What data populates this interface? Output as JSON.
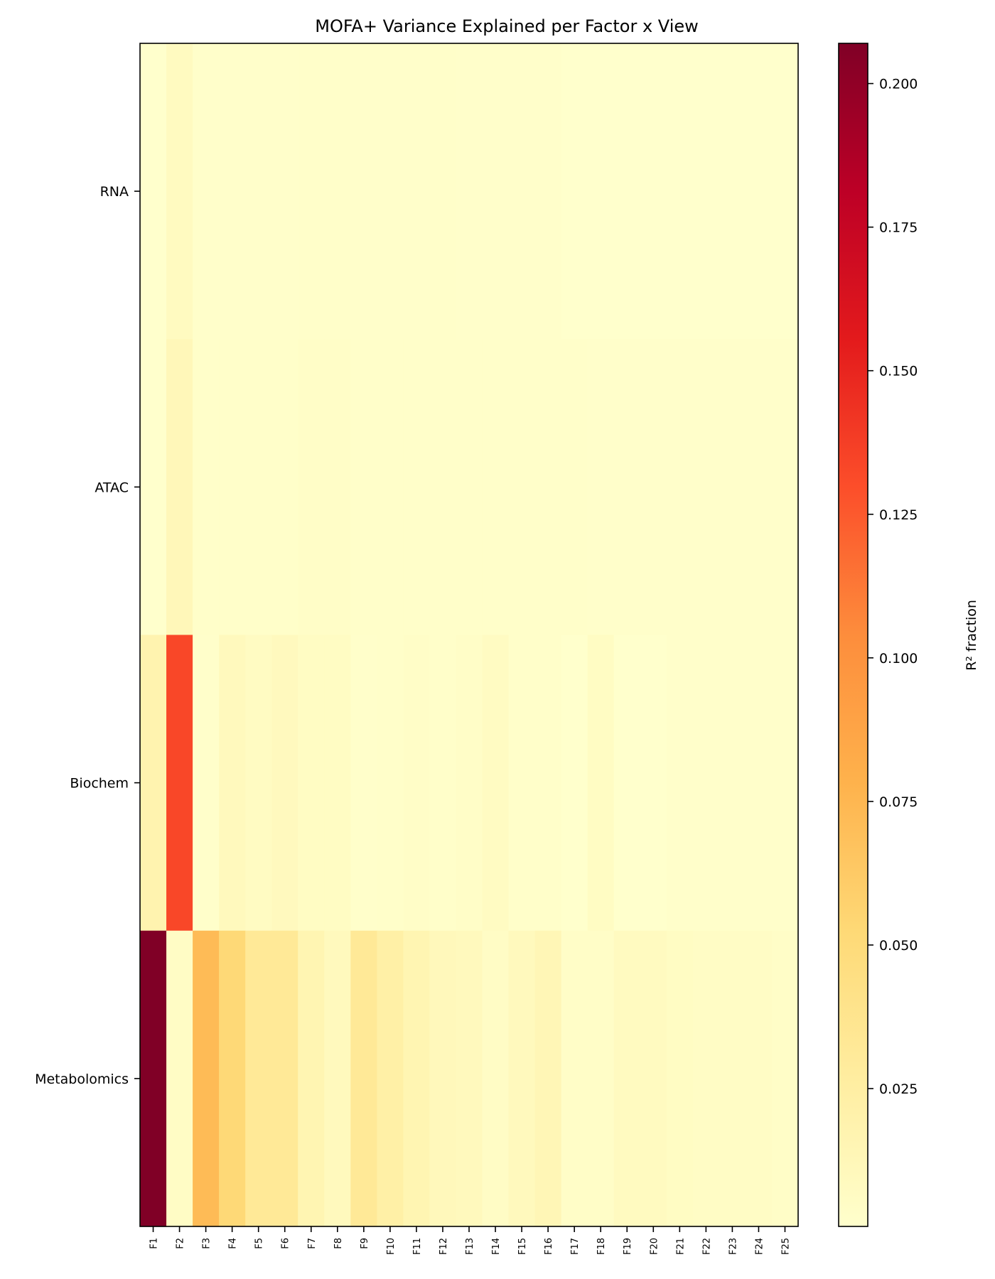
{
  "chart_data": {
    "type": "heatmap",
    "title": "MOFA+ Variance Explained per Factor x View",
    "xlabel": "",
    "ylabel": "",
    "rows": [
      "RNA",
      "ATAC",
      "Biochem",
      "Metabolomics"
    ],
    "columns": [
      "F1",
      "F2",
      "F3",
      "F4",
      "F5",
      "F6",
      "F7",
      "F8",
      "F9",
      "F10",
      "F11",
      "F12",
      "F13",
      "F14",
      "F15",
      "F16",
      "F17",
      "F18",
      "F19",
      "F20",
      "F21",
      "F22",
      "F23",
      "F24",
      "F25"
    ],
    "values": [
      [
        0.001,
        0.008,
        0.002,
        0.002,
        0.002,
        0.002,
        0.003,
        0.003,
        0.002,
        0.002,
        0.002,
        0.003,
        0.002,
        0.002,
        0.002,
        0.002,
        0.001,
        0.001,
        0.001,
        0.001,
        0.001,
        0.001,
        0.001,
        0.001,
        0.001
      ],
      [
        0.001,
        0.012,
        0.003,
        0.003,
        0.003,
        0.003,
        0.004,
        0.004,
        0.003,
        0.003,
        0.003,
        0.003,
        0.003,
        0.003,
        0.003,
        0.003,
        0.003,
        0.002,
        0.002,
        0.002,
        0.002,
        0.002,
        0.002,
        0.002,
        0.002
      ],
      [
        0.018,
        0.133,
        0.002,
        0.01,
        0.007,
        0.009,
        0.006,
        0.006,
        0.002,
        0.003,
        0.004,
        0.003,
        0.004,
        0.007,
        0.003,
        0.003,
        0.001,
        0.006,
        0.001,
        0.001,
        0.002,
        0.002,
        0.002,
        0.002,
        0.002
      ],
      [
        0.207,
        0.005,
        0.072,
        0.052,
        0.032,
        0.032,
        0.016,
        0.01,
        0.032,
        0.023,
        0.016,
        0.011,
        0.01,
        0.005,
        0.01,
        0.014,
        0.004,
        0.004,
        0.008,
        0.008,
        0.006,
        0.005,
        0.005,
        0.005,
        0.004
      ]
    ],
    "colorbar": {
      "label": "R² fraction",
      "colormap": "YlOrRd",
      "range": [
        0.001,
        0.207
      ],
      "ticks": [
        0.025,
        0.05,
        0.075,
        0.1,
        0.125,
        0.15,
        0.175,
        0.2
      ],
      "tick_labels": [
        "0.025",
        "0.050",
        "0.075",
        "0.100",
        "0.125",
        "0.150",
        "0.175",
        "0.200"
      ]
    },
    "colormap_stops": [
      "#ffffcc",
      "#ffeda0",
      "#fed976",
      "#feb24c",
      "#fd8d3c",
      "#fc4e2a",
      "#e31a1c",
      "#bd0026",
      "#800026"
    ]
  }
}
